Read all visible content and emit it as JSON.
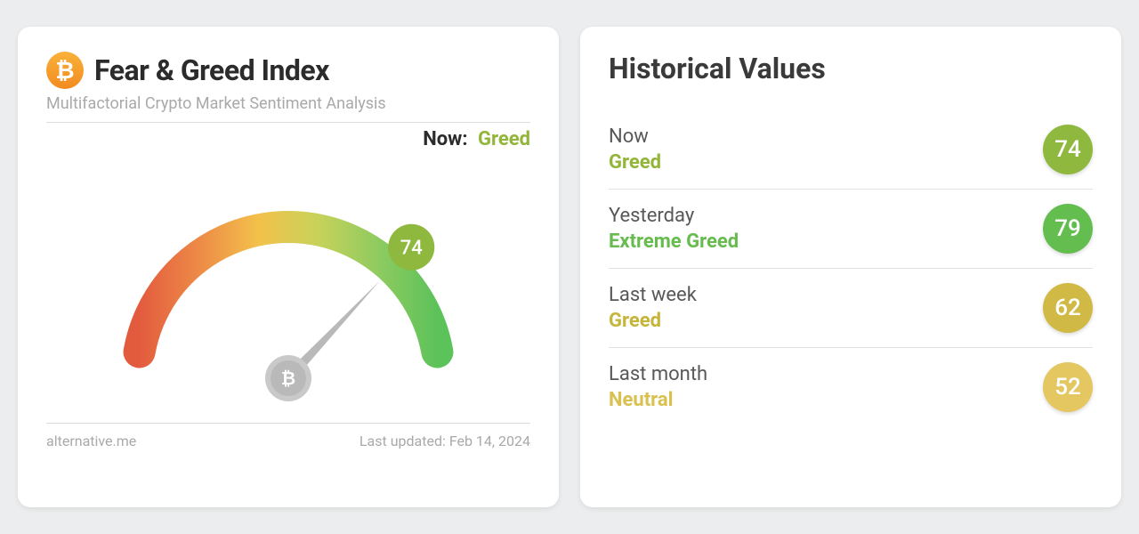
{
  "page": {
    "background_color": "#ecedee"
  },
  "left": {
    "icon_bg_gradient": [
      "#f9b23a",
      "#f28b20"
    ],
    "icon_glyph": "₿",
    "title": "Fear & Greed Index",
    "subtitle": "Multifactorial Crypto Market Sentiment Analysis",
    "now_prefix": "Now:",
    "now_label": "Greed",
    "now_color": "#93b53a",
    "gauge": {
      "type": "gauge",
      "value": 74,
      "min": 0,
      "max": 100,
      "stroke_width": 36,
      "arc_colors": [
        "#e35b3e",
        "#ed8a47",
        "#f3c14a",
        "#c7d25a",
        "#8fcb60",
        "#5cc25a"
      ],
      "needle_color": "#b9b9b9",
      "needle_width": 12,
      "hub_outer_color": "#c9c9c9",
      "hub_inner_color": "#b9b9b9",
      "hub_glyph_color": "#ffffff",
      "badge_bg": "#8eb83e",
      "badge_text_color": "#ffffff",
      "badge_fontsize": 22
    },
    "source": "alternative.me",
    "updated_prefix": "Last updated:",
    "updated": "Feb 14, 2024"
  },
  "right": {
    "title": "Historical Values",
    "rows": [
      {
        "period": "Now",
        "label": "Greed",
        "label_color": "#93b53a",
        "value": 74,
        "badge_color": "#8eb83e"
      },
      {
        "period": "Yesterday",
        "label": "Extreme Greed",
        "label_color": "#67bb4f",
        "value": 79,
        "badge_color": "#63be4f"
      },
      {
        "period": "Last week",
        "label": "Greed",
        "label_color": "#c6b53b",
        "value": 62,
        "badge_color": "#d1b945"
      },
      {
        "period": "Last month",
        "label": "Neutral",
        "label_color": "#d9c04f",
        "value": 52,
        "badge_color": "#e4c760"
      }
    ]
  }
}
